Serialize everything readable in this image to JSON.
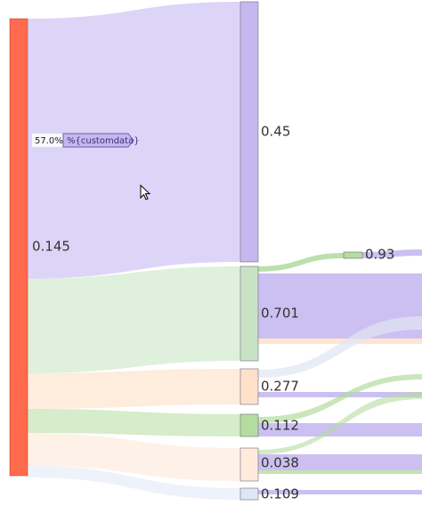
{
  "chart_data": {
    "type": "sankey",
    "nodes": [
      {
        "id": "src",
        "label": "0.145",
        "color": "#ff6a4d"
      },
      {
        "id": "n1",
        "label": "0.45",
        "color": "#c6b8ef"
      },
      {
        "id": "n2",
        "label": "0.701",
        "color": "#c8e3c3"
      },
      {
        "id": "n3",
        "label": "0.277",
        "color": "#ffe0c8"
      },
      {
        "id": "n4",
        "label": "0.112",
        "color": "#b4dc9e"
      },
      {
        "id": "n5",
        "label": "0.038",
        "color": "#ffeadb"
      },
      {
        "id": "n6",
        "label": "0.109",
        "color": "#dfe6f4"
      },
      {
        "id": "n7",
        "label": "0.93",
        "color": "#b4dc9e"
      }
    ],
    "links": [
      {
        "source": "src",
        "target": "n1",
        "color": "#c7b9f3",
        "opacity": 0.6
      },
      {
        "source": "src",
        "target": "n2",
        "color": "#b8ddb4",
        "opacity": 0.45
      },
      {
        "source": "src",
        "target": "n3",
        "color": "#fcd4b4",
        "opacity": 0.45
      },
      {
        "source": "src",
        "target": "n4",
        "color": "#b4dc9e",
        "opacity": 0.55
      },
      {
        "source": "src",
        "target": "n5",
        "color": "#fde2cc",
        "opacity": 0.45
      },
      {
        "source": "src",
        "target": "n6",
        "color": "#d9e3f3",
        "opacity": 0.45
      },
      {
        "source": "n2",
        "target": "n7",
        "color": "#9fd28c",
        "opacity": 0.7
      }
    ],
    "hover": {
      "percent": "57.0%",
      "text": "%{customdata}"
    }
  }
}
